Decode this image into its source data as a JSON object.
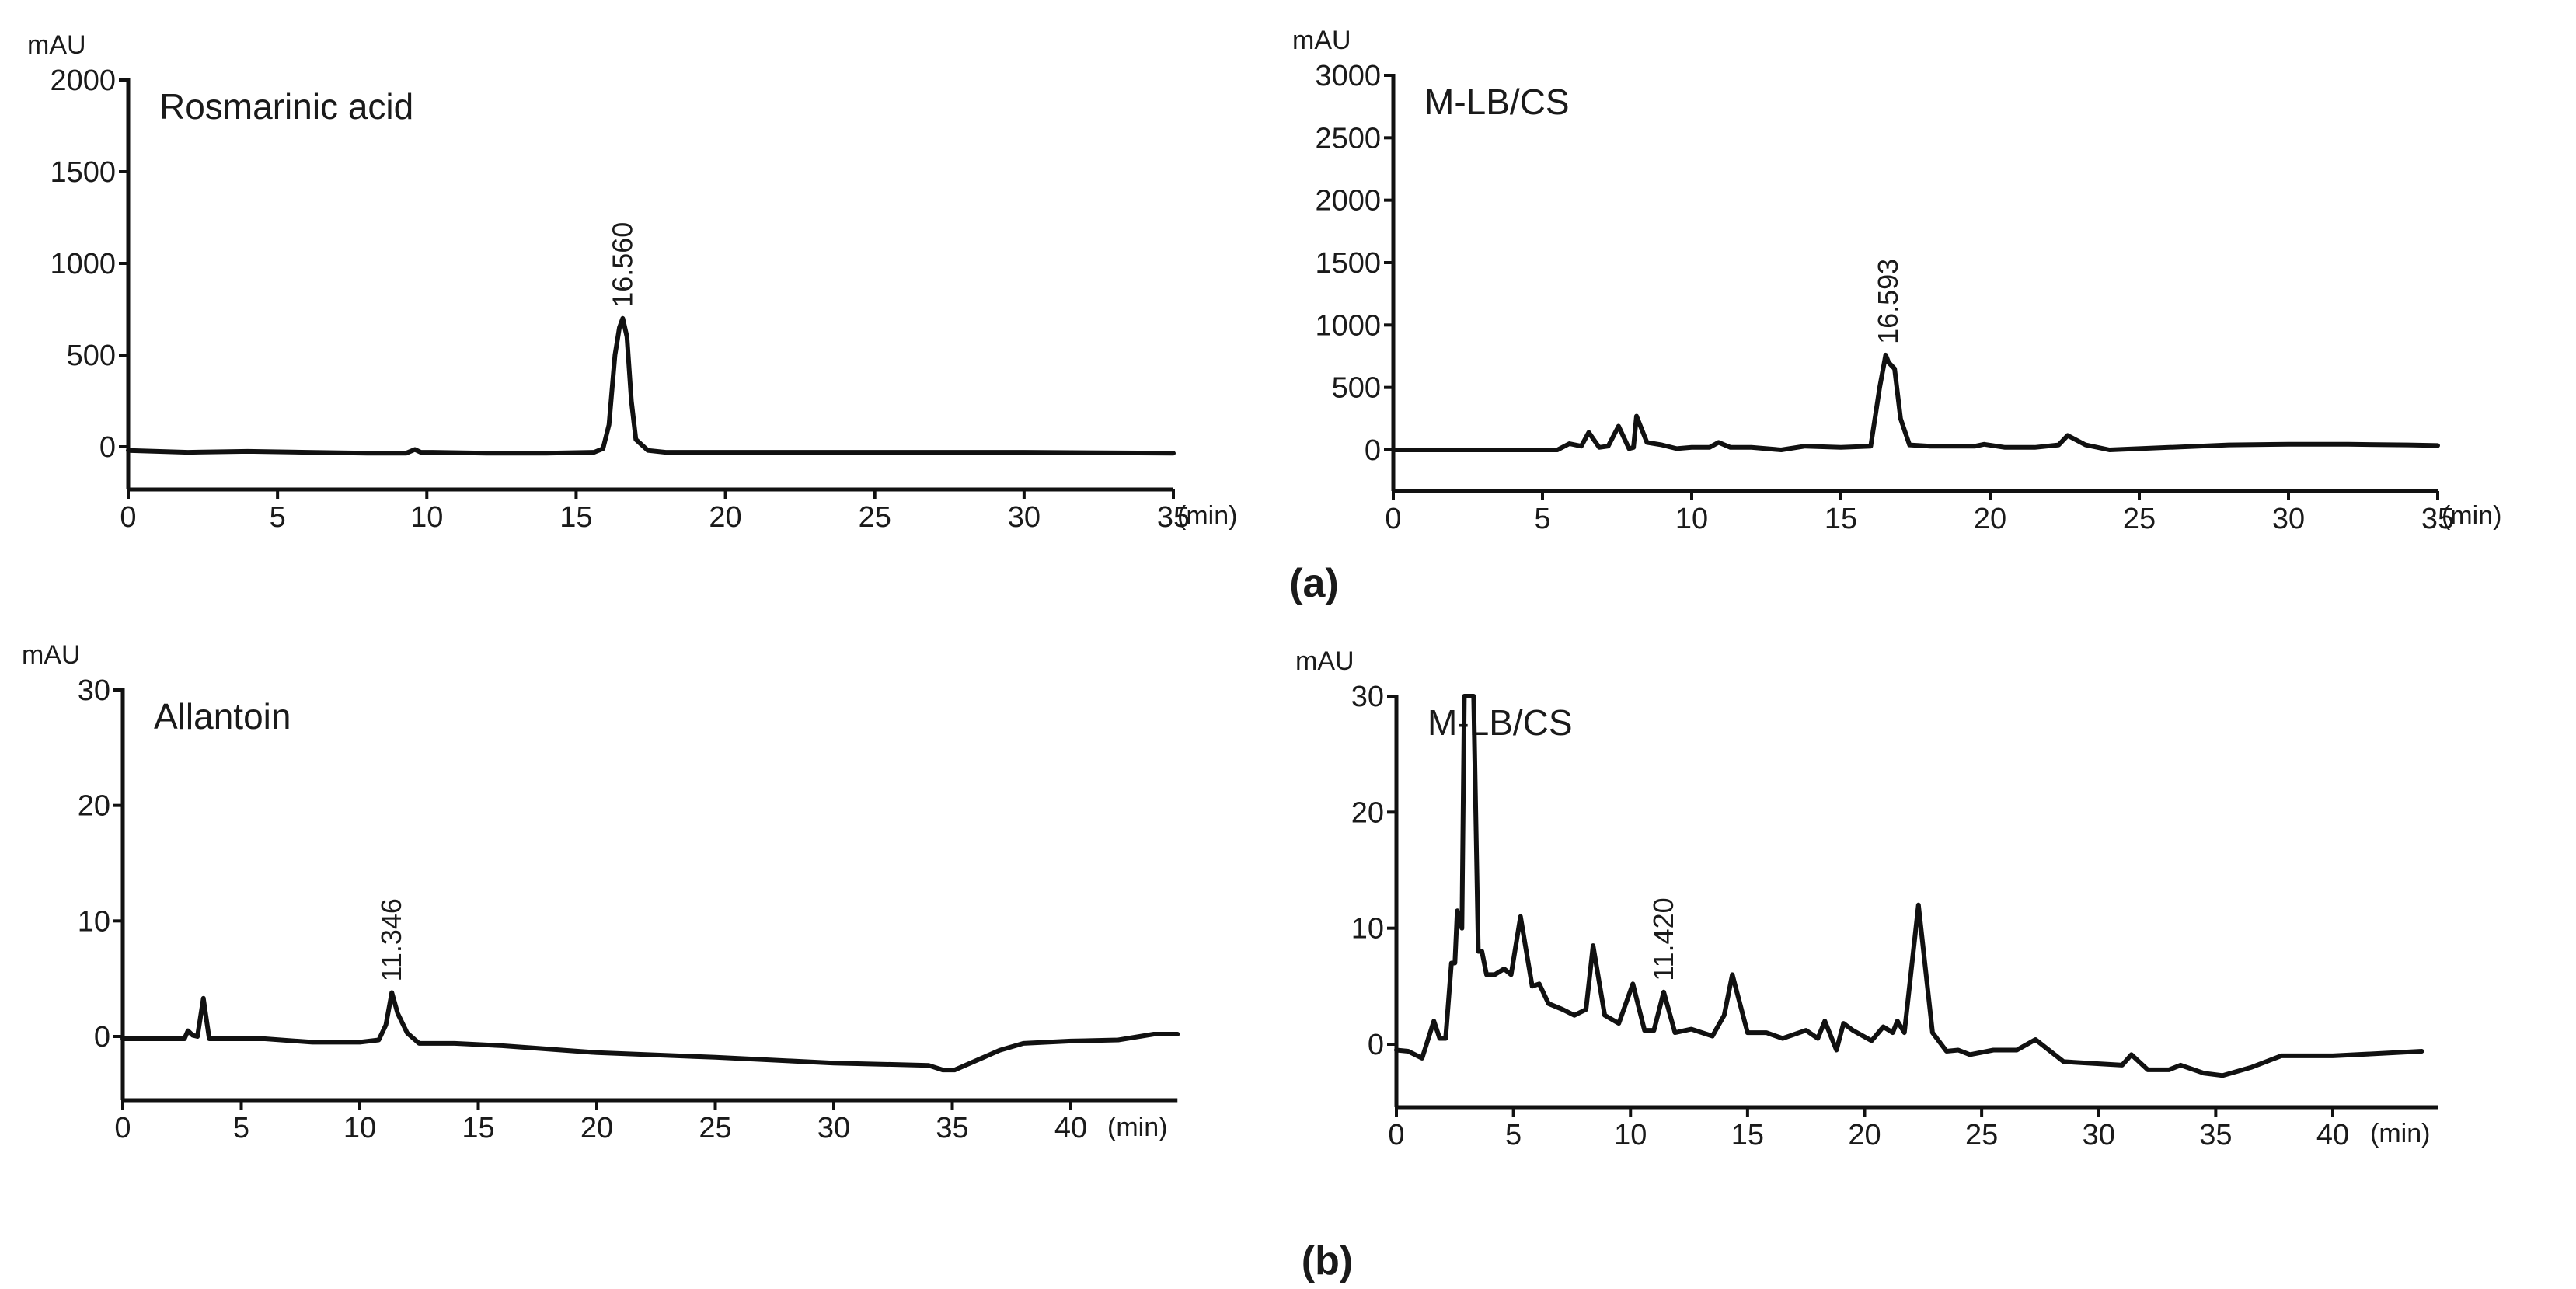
{
  "figure": {
    "panel_labels": {
      "a": "(a)",
      "b": "(b)"
    }
  },
  "chart_data": [
    {
      "id": "rosmarinic-standard",
      "type": "line",
      "title": "Rosmarinic acid",
      "xlabel": "(min)",
      "ylabel": "mAU",
      "xlim": [
        0,
        35
      ],
      "ylim": [
        -200,
        2000
      ],
      "xticks": [
        0,
        5,
        10,
        15,
        20,
        25,
        30,
        35
      ],
      "yticks": [
        0,
        500,
        1000,
        1500,
        2000
      ],
      "grid": false,
      "peak_annotations": [
        {
          "x": 16.56,
          "y": 700,
          "label": "16.560"
        }
      ],
      "x": [
        0,
        2,
        4,
        6,
        8,
        9.3,
        9.6,
        9.8,
        10.2,
        12,
        14,
        15.6,
        15.9,
        16.1,
        16.3,
        16.45,
        16.56,
        16.7,
        16.85,
        17.0,
        17.4,
        18,
        20,
        25,
        30,
        35
      ],
      "y": [
        -20,
        -30,
        -25,
        -30,
        -35,
        -35,
        -15,
        -30,
        -30,
        -35,
        -35,
        -30,
        -10,
        120,
        500,
        650,
        700,
        600,
        250,
        40,
        -20,
        -30,
        -30,
        -30,
        -30,
        -35
      ]
    },
    {
      "id": "rosmarinic-sample",
      "type": "line",
      "title": "M-LB/CS",
      "xlabel": "(min)",
      "ylabel": "mAU",
      "xlim": [
        0,
        35
      ],
      "ylim": [
        -350,
        3000
      ],
      "xticks": [
        0,
        5,
        10,
        15,
        20,
        25,
        30,
        35
      ],
      "yticks": [
        0,
        500,
        1000,
        1500,
        2000,
        2500,
        3000
      ],
      "grid": false,
      "peak_annotations": [
        {
          "x": 16.593,
          "y": 760,
          "label": "16.593"
        }
      ],
      "x": [
        0,
        3,
        5.5,
        5.9,
        6.3,
        6.55,
        6.9,
        7.2,
        7.55,
        7.9,
        8.05,
        8.15,
        8.5,
        9,
        9.5,
        10,
        10.6,
        10.9,
        11.3,
        12,
        13,
        13.8,
        15,
        16.0,
        16.3,
        16.5,
        16.6,
        16.8,
        17.0,
        17.3,
        18,
        19.5,
        19.8,
        20.5,
        21.5,
        22.3,
        22.6,
        23.2,
        24,
        26,
        28,
        30,
        32,
        34,
        35
      ],
      "y": [
        0,
        0,
        0,
        50,
        30,
        140,
        20,
        30,
        190,
        10,
        20,
        270,
        60,
        40,
        10,
        20,
        20,
        60,
        20,
        20,
        0,
        30,
        20,
        30,
        500,
        760,
        700,
        650,
        250,
        40,
        30,
        30,
        45,
        20,
        20,
        40,
        115,
        40,
        0,
        20,
        40,
        45,
        45,
        40,
        35
      ]
    },
    {
      "id": "allantoin-standard",
      "type": "line",
      "title": "Allantoin",
      "xlabel": "(min)",
      "ylabel": "mAU",
      "xlim": [
        0,
        44.5
      ],
      "ylim": [
        -5.5,
        30
      ],
      "xticks": [
        0,
        5,
        10,
        15,
        20,
        25,
        30,
        35,
        40
      ],
      "yticks": [
        0,
        10,
        20,
        30
      ],
      "grid": false,
      "peak_annotations": [
        {
          "x": 11.346,
          "y": 3.8,
          "label": "11.346"
        }
      ],
      "x": [
        0,
        2.6,
        2.75,
        2.95,
        3.15,
        3.4,
        3.65,
        6,
        8,
        10,
        10.8,
        11.1,
        11.35,
        11.6,
        12.0,
        12.5,
        14,
        16,
        20,
        25,
        30,
        34,
        34.6,
        35.1,
        37,
        38,
        40,
        42,
        43.5,
        44.5
      ],
      "y": [
        -0.2,
        -0.2,
        0.5,
        0.1,
        0.0,
        3.3,
        -0.2,
        -0.2,
        -0.5,
        -0.5,
        -0.3,
        1.0,
        3.8,
        2.0,
        0.3,
        -0.6,
        -0.6,
        -0.8,
        -1.4,
        -1.8,
        -2.3,
        -2.5,
        -2.9,
        -2.9,
        -1.2,
        -0.6,
        -0.4,
        -0.3,
        0.2,
        0.2
      ]
    },
    {
      "id": "allantoin-sample",
      "type": "line",
      "title": "M-LB/CS",
      "xlabel": "(min)",
      "ylabel": "mAU",
      "xlim": [
        0,
        44.5
      ],
      "ylim": [
        -5.5,
        30
      ],
      "xticks": [
        0,
        5,
        10,
        15,
        20,
        25,
        30,
        35,
        40
      ],
      "yticks": [
        0,
        10,
        20,
        30
      ],
      "grid": false,
      "peak_annotations": [
        {
          "x": 11.42,
          "y": 4.5,
          "label": "11.420"
        }
      ],
      "x": [
        0,
        0.5,
        1.1,
        1.6,
        1.85,
        2.1,
        2.35,
        2.5,
        2.6,
        2.8,
        2.9,
        3.0,
        3.3,
        3.5,
        3.65,
        3.85,
        4.2,
        4.6,
        4.9,
        5.3,
        5.8,
        6.1,
        6.5,
        7.1,
        7.6,
        8.1,
        8.4,
        8.9,
        9.5,
        10.1,
        10.6,
        11.0,
        11.42,
        11.9,
        12.6,
        13.5,
        14.0,
        14.35,
        15.0,
        15.8,
        16.5,
        17.5,
        18.0,
        18.3,
        18.8,
        19.1,
        19.5,
        20.3,
        20.8,
        21.2,
        21.4,
        21.7,
        22.3,
        22.9,
        23.5,
        24.0,
        24.5,
        25.5,
        26.5,
        27.3,
        28.5,
        31.0,
        31.4,
        32.1,
        33.0,
        33.5,
        34.5,
        35.3,
        36.5,
        37.8,
        40,
        42,
        43.8
      ],
      "y": [
        -0.5,
        -0.6,
        -1.2,
        2.0,
        0.5,
        0.5,
        7.0,
        7.0,
        11.5,
        10.0,
        30,
        30,
        30,
        8.0,
        8.0,
        6.0,
        6.0,
        6.5,
        6.0,
        11.0,
        5.0,
        5.2,
        3.5,
        3.0,
        2.5,
        3.0,
        8.5,
        2.5,
        1.8,
        5.2,
        1.2,
        1.2,
        4.5,
        1.0,
        1.3,
        0.7,
        2.5,
        6.0,
        1.0,
        1.0,
        0.5,
        1.2,
        0.5,
        2.0,
        -0.5,
        1.8,
        1.2,
        0.3,
        1.5,
        1.0,
        2.0,
        1.0,
        12.0,
        1.0,
        -0.6,
        -0.5,
        -0.9,
        -0.5,
        -0.5,
        0.4,
        -1.5,
        -1.8,
        -0.9,
        -2.2,
        -2.2,
        -1.8,
        -2.5,
        -2.7,
        -2.0,
        -1.0,
        -1.0,
        -0.8,
        -0.6
      ]
    }
  ]
}
